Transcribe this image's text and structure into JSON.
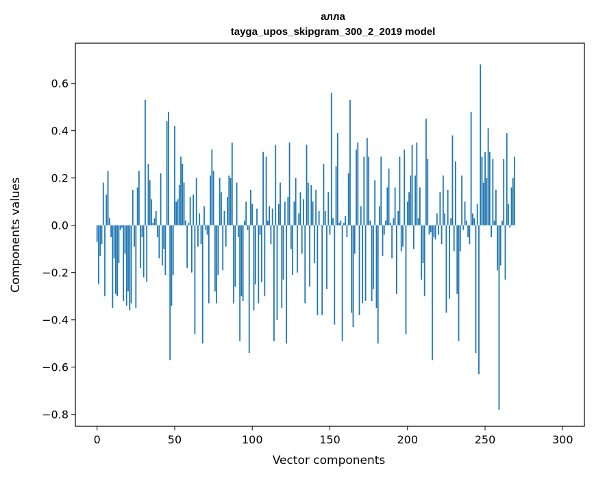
{
  "chart_data": {
    "type": "bar",
    "title_line1": "алла",
    "title_line2": "tayga_upos_skipgram_300_2_2019 model",
    "xlabel": "Vector components",
    "ylabel": "Components values",
    "xlim": [
      -14,
      314
    ],
    "ylim": [
      -0.85,
      0.77
    ],
    "xticks": [
      0,
      50,
      100,
      150,
      200,
      250,
      300
    ],
    "xtick_labels": [
      "0",
      "50",
      "100",
      "150",
      "200",
      "250",
      "300"
    ],
    "yticks": [
      -0.8,
      -0.6,
      -0.4,
      -0.2,
      0.0,
      0.2,
      0.4,
      0.6
    ],
    "ytick_labels": [
      "−0.8",
      "−0.6",
      "−0.4",
      "−0.2",
      "0.0",
      "0.2",
      "0.4",
      "0.6"
    ],
    "bar_color": "#1f77b4",
    "values": [
      -0.07,
      -0.25,
      -0.13,
      -0.08,
      0.18,
      -0.3,
      0.13,
      0.23,
      0.03,
      -0.05,
      -0.35,
      -0.14,
      -0.29,
      -0.3,
      -0.16,
      -0.02,
      -0.01,
      -0.32,
      -0.12,
      -0.34,
      -0.28,
      -0.36,
      -0.33,
      0.15,
      -0.09,
      -0.35,
      0.16,
      0.23,
      -0.18,
      -0.05,
      -0.22,
      0.53,
      -0.24,
      0.26,
      0.19,
      0.11,
      0.01,
      0.03,
      0.06,
      -0.05,
      -0.14,
      0.22,
      -0.17,
      -0.1,
      -0.21,
      0.44,
      0.48,
      -0.57,
      -0.34,
      -0.21,
      0.42,
      0.1,
      0.11,
      0.17,
      0.29,
      0.26,
      0.18,
      0.02,
      -0.18,
      0.01,
      0.12,
      -0.2,
      0.13,
      -0.46,
      0.2,
      -0.09,
      0.05,
      -0.08,
      -0.5,
      0.08,
      -0.02,
      -0.04,
      -0.33,
      0.21,
      0.32,
      0.23,
      -0.28,
      -0.33,
      -0.21,
      0.2,
      0.14,
      -0.19,
      0.06,
      -0.09,
      0.12,
      0.21,
      0.2,
      0.35,
      -0.33,
      -0.26,
      0.18,
      -0.05,
      -0.49,
      -0.3,
      -0.32,
      0.02,
      0.1,
      -0.02,
      -0.54,
      0.15,
      0.09,
      -0.36,
      -0.25,
      0.07,
      -0.33,
      -0.04,
      -0.24,
      0.31,
      -0.3,
      0.29,
      0.02,
      0.08,
      -0.08,
      0.07,
      -0.49,
      0.34,
      -0.4,
      0.09,
      0.18,
      -0.35,
      -0.23,
      0.1,
      -0.5,
      0.12,
      0.35,
      -0.1,
      -0.21,
      0.1,
      0.2,
      -0.2,
      0.05,
      0.14,
      -0.12,
      0.11,
      -0.33,
      0.34,
      0.18,
      -0.26,
      0.17,
      0.1,
      -0.16,
      0.15,
      -0.38,
      0.06,
      0.0,
      -0.38,
      0.26,
      0.06,
      -0.27,
      0.14,
      -0.04,
      0.56,
      0.03,
      -0.42,
      0.25,
      0.39,
      0.01,
      0.02,
      -0.49,
      0.01,
      0.04,
      -0.05,
      0.22,
      0.53,
      -0.37,
      -0.43,
      -0.12,
      0.32,
      0.35,
      -0.38,
      0.08,
      -0.33,
      0.29,
      -0.32,
      0.37,
      0.29,
      0.02,
      -0.32,
      -0.27,
      0.19,
      -0.35,
      -0.5,
      0.08,
      0.29,
      -0.13,
      -0.04,
      0.02,
      0.16,
      0.24,
      0.01,
      -0.14,
      0.03,
      0.16,
      -0.29,
      0.06,
      0.29,
      -0.11,
      -0.09,
      0.32,
      -0.46,
      0.1,
      0.14,
      0.21,
      0.34,
      -0.1,
      0.21,
      0.35,
      0.03,
      0.16,
      -0.23,
      -0.16,
      -0.3,
      0.45,
      0.28,
      -0.04,
      -0.03,
      -0.57,
      -0.05,
      -0.06,
      0.05,
      -0.04,
      0.14,
      -0.08,
      0.21,
      0.05,
      -0.37,
      0.15,
      -0.31,
      0.03,
      0.38,
      -0.11,
      0.27,
      -0.29,
      -0.49,
      -0.11,
      0.21,
      -0.02,
      0.1,
      0.02,
      -0.05,
      -0.08,
      0.48,
      0.05,
      0.03,
      -0.54,
      0.09,
      -0.63,
      0.68,
      0.29,
      0.18,
      0.31,
      0.2,
      0.41,
      0.31,
      -0.05,
      0.28,
      0.02,
      0.15,
      -0.19,
      -0.78,
      -0.17,
      0.02,
      0.28,
      -0.23,
      0.39,
      0.09,
      -0.01,
      0.16,
      0.2,
      0.29
    ]
  }
}
